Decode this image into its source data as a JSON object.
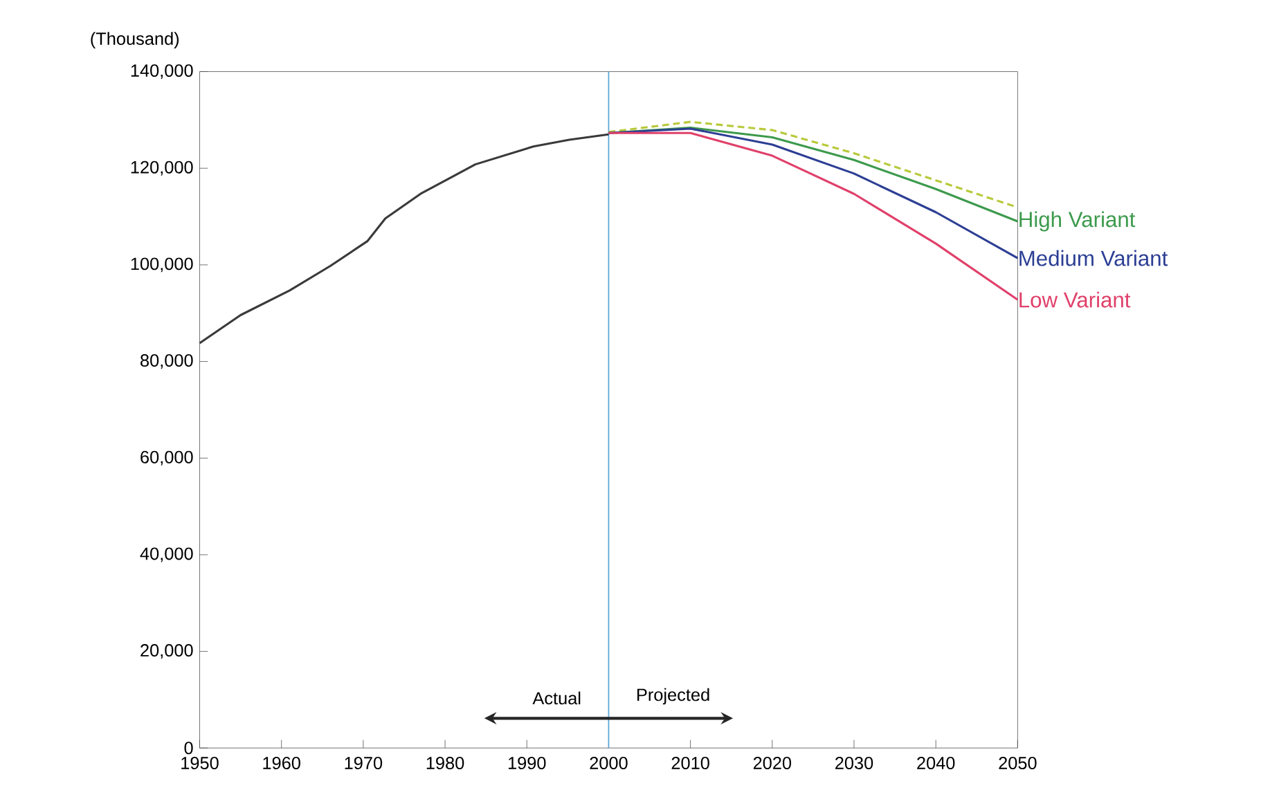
{
  "chart_data": {
    "type": "line",
    "ylabel": "(Thousand)",
    "xlim": [
      1950,
      2050
    ],
    "xticks": [
      1950,
      1960,
      1970,
      1980,
      1990,
      2000,
      2010,
      2020,
      2030,
      2040,
      2050
    ],
    "ylim": [
      0,
      140000
    ],
    "yticks": [
      {
        "value": 0,
        "label": "0"
      },
      {
        "value": 20000,
        "label": "20,000"
      },
      {
        "value": 40000,
        "label": "40,000"
      },
      {
        "value": 60000,
        "label": "60,000"
      },
      {
        "value": 80000,
        "label": "80,000"
      },
      {
        "value": 100000,
        "label": "100,000"
      },
      {
        "value": 120000,
        "label": "120,000"
      },
      {
        "value": 140000,
        "label": "140,000"
      }
    ],
    "ref_lines": [
      {
        "axis": "x",
        "value": 2000,
        "color": "#5aa7d8"
      }
    ],
    "annotations": [
      "Actual",
      "Projected"
    ],
    "grid": false,
    "marker": "none",
    "line_style": "solid",
    "series": [
      {
        "color": "#3a3a3a",
        "x": [
          1950,
          1955,
          1961,
          1966,
          1970.5,
          1972.7,
          1977,
          1983.7,
          1990.8,
          1995.2,
          2000
        ],
        "values": [
          83800,
          89600,
          94700,
          99800,
          104900,
          109600,
          114700,
          120800,
          124500,
          125900,
          127000
        ]
      },
      {
        "color": "#b8c93a",
        "line_style": "dashed",
        "x": [
          2000,
          2010,
          2020,
          2030,
          2040,
          2050
        ],
        "values": [
          127500,
          129600,
          127900,
          123100,
          117500,
          111900
        ]
      },
      {
        "name": "High Variant",
        "color": "#3c9a4c",
        "x": [
          2000,
          2010,
          2020,
          2030,
          2040,
          2050
        ],
        "values": [
          127300,
          128400,
          126400,
          121700,
          115700,
          109000
        ]
      },
      {
        "name": "Medium Variant",
        "color": "#2c3e94",
        "x": [
          2000,
          2010,
          2020,
          2030,
          2040,
          2050
        ],
        "values": [
          127300,
          128200,
          124900,
          118900,
          110900,
          101400
        ]
      },
      {
        "name": "Low Variant",
        "color": "#e0406a",
        "x": [
          2000,
          2010,
          2020,
          2030,
          2040,
          2050
        ],
        "values": [
          127300,
          127300,
          122600,
          114700,
          104400,
          92800
        ]
      }
    ]
  }
}
